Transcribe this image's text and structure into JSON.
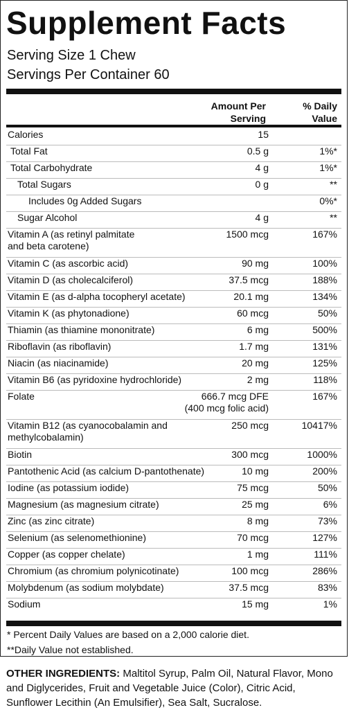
{
  "title": "Supplement Facts",
  "serving_size": "Serving Size 1 Chew",
  "servings_per_container": "Servings Per Container 60",
  "columns": {
    "amount_line1": "Amount Per",
    "amount_line2": "Serving",
    "dv_line1": "% Daily",
    "dv_line2": "Value"
  },
  "rows": [
    {
      "name": "Calories",
      "amount": "15",
      "dv": ""
    },
    {
      "name": "Total Fat",
      "amount": "0.5 g",
      "dv": "1%*"
    },
    {
      "name": "Total Carbohydrate",
      "amount": "4 g",
      "dv": "1%*"
    },
    {
      "name": "Total Sugars",
      "amount": "0 g",
      "dv": "**"
    },
    {
      "name": "Includes 0g Added Sugars",
      "amount": "",
      "dv": "0%*"
    },
    {
      "name": "Sugar Alcohol",
      "amount": "4 g",
      "dv": "**"
    },
    {
      "name": "Vitamin A (as retinyl palmitate\nand beta carotene)",
      "amount": "1500 mcg",
      "dv": "167%"
    },
    {
      "name": "Vitamin C (as ascorbic acid)",
      "amount": "90 mg",
      "dv": "100%"
    },
    {
      "name": "Vitamin D (as cholecalciferol)",
      "amount": "37.5 mcg",
      "dv": "188%"
    },
    {
      "name": "Vitamin E (as d-alpha tocopheryl acetate)",
      "amount": "20.1 mg",
      "dv": "134%"
    },
    {
      "name": "Vitamin K (as phytonadione)",
      "amount": "60 mcg",
      "dv": "50%"
    },
    {
      "name": "Thiamin (as thiamine mononitrate)",
      "amount": "6 mg",
      "dv": "500%"
    },
    {
      "name": "Riboflavin (as riboflavin)",
      "amount": "1.7 mg",
      "dv": "131%"
    },
    {
      "name": "Niacin (as niacinamide)",
      "amount": "20 mg",
      "dv": "125%"
    },
    {
      "name": "Vitamin B6 (as pyridoxine hydrochloride)",
      "amount": "2 mg",
      "dv": "118%"
    },
    {
      "name": "Folate",
      "amount": "666.7 mcg DFE\n(400 mcg folic acid)",
      "dv": "167%"
    },
    {
      "name": "Vitamin B12 (as cyanocobalamin and\nmethylcobalamin)",
      "amount": "250 mcg",
      "dv": "10417%"
    },
    {
      "name": "Biotin",
      "amount": "300 mcg",
      "dv": "1000%"
    },
    {
      "name": "Pantothenic Acid (as calcium D-pantothenate)",
      "amount": "10 mg",
      "dv": "200%"
    },
    {
      "name": "Iodine (as potassium iodide)",
      "amount": "75 mcg",
      "dv": "50%"
    },
    {
      "name": "Magnesium (as magnesium citrate)",
      "amount": "25 mg",
      "dv": "6%"
    },
    {
      "name": "Zinc (as zinc citrate)",
      "amount": "8 mg",
      "dv": "73%"
    },
    {
      "name": "Selenium (as selenomethionine)",
      "amount": "70 mcg",
      "dv": "127%"
    },
    {
      "name": "Copper (as copper chelate)",
      "amount": "1 mg",
      "dv": "111%"
    },
    {
      "name": "Chromium (as chromium polynicotinate)",
      "amount": "100 mcg",
      "dv": "286%"
    },
    {
      "name": "Molybdenum (as sodium molybdate)",
      "amount": "37.5 mcg",
      "dv": "83%"
    },
    {
      "name": "Sodium",
      "amount": "15 mg",
      "dv": "1%"
    }
  ],
  "footnotes": [
    "* Percent Daily Values are based on a 2,000 calorie diet.",
    "**Daily Value not established."
  ],
  "ingredients": {
    "label": "OTHER INGREDIENTS:",
    "text": " Maltitol Syrup, Palm Oil, Natural Flavor, Mono and Diglycerides, Fruit and Vegetable Juice (Color), Citric Acid, Sunflower Lecithin (An Emulsifier), Sea Salt, Sucralose."
  }
}
